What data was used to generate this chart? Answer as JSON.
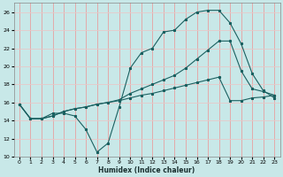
{
  "title": "",
  "xlabel": "Humidex (Indice chaleur)",
  "ylabel": "",
  "xlim": [
    -0.5,
    23.5
  ],
  "ylim": [
    10,
    27
  ],
  "yticks": [
    10,
    12,
    14,
    16,
    18,
    20,
    22,
    24,
    26
  ],
  "xticks": [
    0,
    1,
    2,
    3,
    4,
    5,
    6,
    7,
    8,
    9,
    10,
    11,
    12,
    13,
    14,
    15,
    16,
    17,
    18,
    19,
    20,
    21,
    22,
    23
  ],
  "bg_color": "#c8e8e8",
  "grid_color_v": "#e8a0a0",
  "grid_color_h": "#e8c8c8",
  "line_color": "#1a6060",
  "line1_y": [
    15.8,
    14.2,
    14.2,
    14.8,
    14.8,
    14.5,
    13.0,
    10.5,
    11.5,
    15.5,
    19.8,
    21.5,
    22.0,
    23.8,
    24.0,
    25.2,
    26.0,
    26.2,
    26.2,
    24.8,
    22.5,
    19.2,
    17.3,
    16.5
  ],
  "line2_y": [
    15.8,
    14.2,
    14.2,
    14.5,
    15.0,
    15.3,
    15.5,
    15.8,
    16.0,
    16.2,
    16.5,
    16.8,
    17.0,
    17.3,
    17.6,
    17.9,
    18.2,
    18.5,
    18.8,
    16.2,
    16.2,
    16.5,
    16.6,
    16.8
  ],
  "line3_y": [
    15.8,
    14.2,
    14.2,
    14.5,
    15.0,
    15.3,
    15.5,
    15.8,
    16.0,
    16.3,
    17.0,
    17.5,
    18.0,
    18.5,
    19.0,
    19.8,
    20.8,
    21.8,
    22.8,
    22.8,
    19.5,
    17.5,
    17.2,
    16.8
  ]
}
